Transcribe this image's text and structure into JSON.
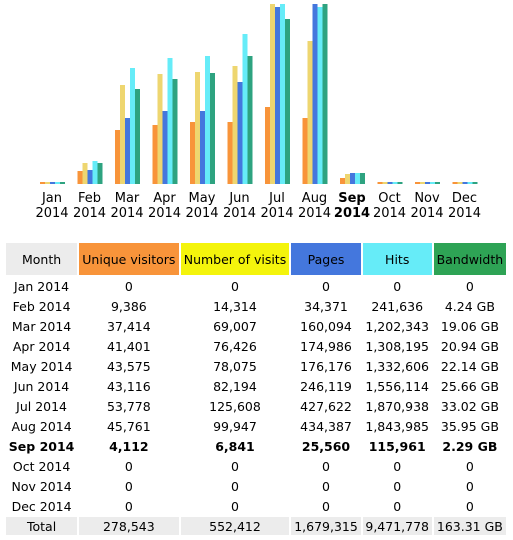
{
  "chart_data": {
    "type": "bar",
    "categories": [
      "Jan 2014",
      "Feb 2014",
      "Mar 2014",
      "Apr 2014",
      "May 2014",
      "Jun 2014",
      "Jul 2014",
      "Aug 2014",
      "Sep 2014",
      "Oct 2014",
      "Nov 2014",
      "Dec 2014"
    ],
    "x_labels": [
      {
        "m": "Jan",
        "y": "2014",
        "current": false
      },
      {
        "m": "Feb",
        "y": "2014",
        "current": false
      },
      {
        "m": "Mar",
        "y": "2014",
        "current": false
      },
      {
        "m": "Apr",
        "y": "2014",
        "current": false
      },
      {
        "m": "May",
        "y": "2014",
        "current": false
      },
      {
        "m": "Jun",
        "y": "2014",
        "current": false
      },
      {
        "m": "Jul",
        "y": "2014",
        "current": false
      },
      {
        "m": "Aug",
        "y": "2014",
        "current": false
      },
      {
        "m": "Sep",
        "y": "2014",
        "current": true
      },
      {
        "m": "Oct",
        "y": "2014",
        "current": false
      },
      {
        "m": "Nov",
        "y": "2014",
        "current": false
      },
      {
        "m": "Dec",
        "y": "2014",
        "current": false
      }
    ],
    "series": [
      {
        "name": "Unique visitors",
        "color": "#f8943a",
        "values": [
          0,
          9386,
          37414,
          41401,
          43575,
          43116,
          53778,
          45761,
          4112,
          0,
          0,
          0
        ]
      },
      {
        "name": "Number of visits",
        "color": "#eed670",
        "values": [
          0,
          14314,
          69007,
          76426,
          78075,
          82194,
          125608,
          99947,
          6841,
          0,
          0,
          0
        ]
      },
      {
        "name": "Pages",
        "color": "#4477dd",
        "values": [
          0,
          34371,
          160094,
          174986,
          176176,
          246119,
          427622,
          434387,
          25560,
          0,
          0,
          0
        ]
      },
      {
        "name": "Hits",
        "color": "#66ecf8",
        "values": [
          0,
          241636,
          1202343,
          1308195,
          1332606,
          1556114,
          1870938,
          1843985,
          115961,
          0,
          0,
          0
        ]
      },
      {
        "name": "Bandwidth (GB)",
        "color": "#2ea380",
        "values": [
          0,
          4.24,
          19.06,
          20.94,
          22.14,
          25.66,
          33.02,
          35.95,
          2.29,
          0,
          0,
          0
        ]
      }
    ]
  },
  "table": {
    "headers": {
      "month": "Month",
      "unique_visitors": "Unique visitors",
      "visits": "Number of visits",
      "pages": "Pages",
      "hits": "Hits",
      "bandwidth": "Bandwidth"
    },
    "rows": [
      {
        "month": "Jan 2014",
        "uv": "0",
        "visits": "0",
        "pages": "0",
        "hits": "0",
        "bw": "0"
      },
      {
        "month": "Feb 2014",
        "uv": "9,386",
        "visits": "14,314",
        "pages": "34,371",
        "hits": "241,636",
        "bw": "4.24 GB"
      },
      {
        "month": "Mar 2014",
        "uv": "37,414",
        "visits": "69,007",
        "pages": "160,094",
        "hits": "1,202,343",
        "bw": "19.06 GB"
      },
      {
        "month": "Apr 2014",
        "uv": "41,401",
        "visits": "76,426",
        "pages": "174,986",
        "hits": "1,308,195",
        "bw": "20.94 GB"
      },
      {
        "month": "May 2014",
        "uv": "43,575",
        "visits": "78,075",
        "pages": "176,176",
        "hits": "1,332,606",
        "bw": "22.14 GB"
      },
      {
        "month": "Jun 2014",
        "uv": "43,116",
        "visits": "82,194",
        "pages": "246,119",
        "hits": "1,556,114",
        "bw": "25.66 GB"
      },
      {
        "month": "Jul 2014",
        "uv": "53,778",
        "visits": "125,608",
        "pages": "427,622",
        "hits": "1,870,938",
        "bw": "33.02 GB"
      },
      {
        "month": "Aug 2014",
        "uv": "45,761",
        "visits": "99,947",
        "pages": "434,387",
        "hits": "1,843,985",
        "bw": "35.95 GB"
      },
      {
        "month": "Sep 2014",
        "uv": "4,112",
        "visits": "6,841",
        "pages": "25,560",
        "hits": "115,961",
        "bw": "2.29 GB"
      },
      {
        "month": "Oct 2014",
        "uv": "0",
        "visits": "0",
        "pages": "0",
        "hits": "0",
        "bw": "0"
      },
      {
        "month": "Nov 2014",
        "uv": "0",
        "visits": "0",
        "pages": "0",
        "hits": "0",
        "bw": "0"
      },
      {
        "month": "Dec 2014",
        "uv": "0",
        "visits": "0",
        "pages": "0",
        "hits": "0",
        "bw": "0"
      }
    ],
    "total": {
      "month": "Total",
      "uv": "278,543",
      "visits": "552,412",
      "pages": "1,679,315",
      "hits": "9,471,778",
      "bw": "163.31 GB"
    },
    "current_month": "Sep 2014"
  }
}
